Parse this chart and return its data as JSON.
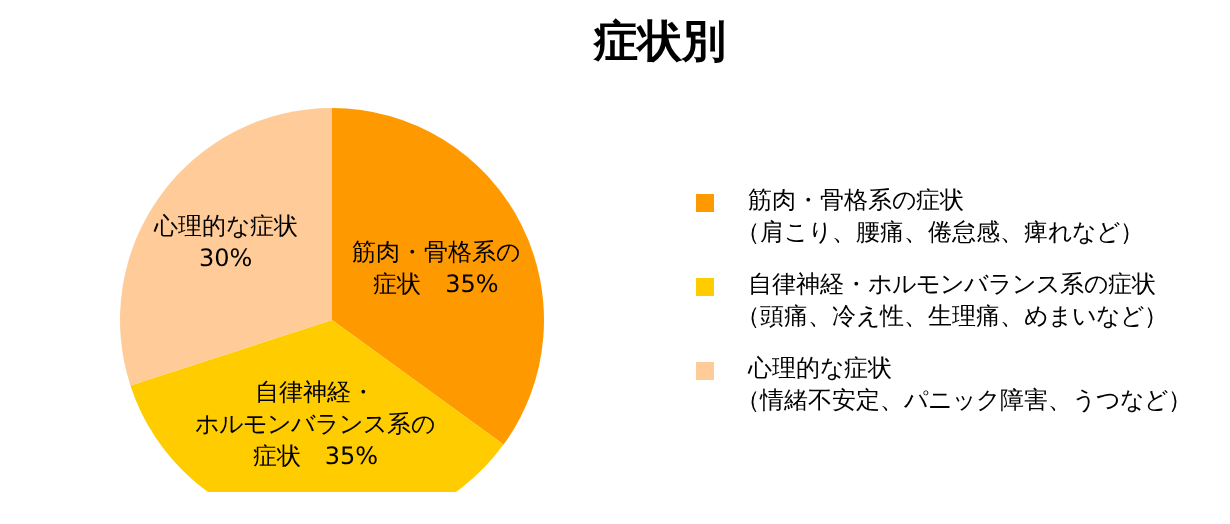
{
  "chart_data": {
    "type": "pie",
    "title": "症状別",
    "categories": [
      "筋肉・骨格系の症状",
      "自律神経・ホルモンバランス系の症状",
      "心理的な症状"
    ],
    "values": [
      35,
      35,
      30
    ],
    "colors": [
      "#ff9900",
      "#ffcc00",
      "#ffcc99"
    ],
    "value_labels": [
      "筋肉・骨格系の症状　35%",
      "自律神経・ホルモンバランス系の症状　35%",
      "心理的な症状　30%"
    ],
    "legend": "right",
    "annotations": [
      "（肩こり、腰痛、倦怠感、痺れなど）",
      "（頭痛、冷え性、生理痛、めまいなど）",
      "（情緒不安定、パニック障害、うつなど）"
    ]
  }
}
